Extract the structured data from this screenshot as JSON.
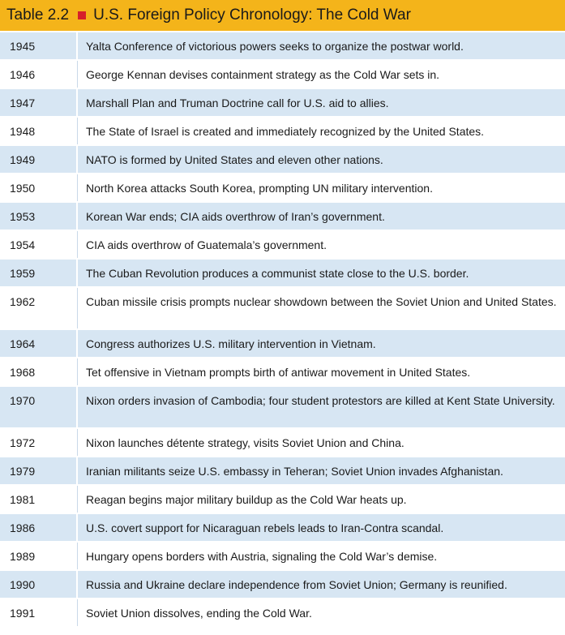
{
  "title": {
    "label": "Table 2.2",
    "text": "U.S. Foreign Policy Chronology: The Cold War"
  },
  "colors": {
    "title_bg": "#f4b41a",
    "marker": "#d6202a",
    "row_shade": "#d7e6f3"
  },
  "rows": [
    {
      "year": "1945",
      "event": "Yalta Conference of victorious powers seeks to organize the postwar world."
    },
    {
      "year": "1946",
      "event": "George Kennan devises containment strategy as the Cold War sets in."
    },
    {
      "year": "1947",
      "event": "Marshall Plan and Truman Doctrine call for U.S. aid to allies."
    },
    {
      "year": "1948",
      "event": "The State of Israel is created and immediately recognized by the United States."
    },
    {
      "year": "1949",
      "event": "NATO is formed by United States and eleven other nations."
    },
    {
      "year": "1950",
      "event": "North Korea attacks South Korea, prompting UN military intervention."
    },
    {
      "year": "1953",
      "event": "Korean War ends; CIA aids overthrow of Iran’s government."
    },
    {
      "year": "1954",
      "event": "CIA aids overthrow of Guatemala’s government."
    },
    {
      "year": "1959",
      "event": "The Cuban Revolution produces a communist state close to the U.S. border."
    },
    {
      "year": "1962",
      "event": "Cuban missile crisis prompts nuclear showdown between the Soviet Union and United States."
    },
    {
      "year": "1964",
      "event": "Congress authorizes U.S. military intervention in Vietnam."
    },
    {
      "year": "1968",
      "event": "Tet offensive in Vietnam prompts birth of antiwar movement in United States."
    },
    {
      "year": "1970",
      "event": "Nixon orders invasion of Cambodia; four student protestors are killed at Kent State University."
    },
    {
      "year": "1972",
      "event": "Nixon launches détente strategy, visits Soviet Union and China."
    },
    {
      "year": "1979",
      "event": "Iranian militants seize U.S. embassy in Teheran; Soviet Union invades Afghanistan."
    },
    {
      "year": "1981",
      "event": "Reagan begins major military buildup as the Cold War heats up."
    },
    {
      "year": "1986",
      "event": "U.S. covert support for Nicaraguan rebels leads to Iran-Contra scandal."
    },
    {
      "year": "1989",
      "event": "Hungary opens borders with Austria, signaling the Cold War’s demise."
    },
    {
      "year": "1990",
      "event": "Russia and Ukraine declare independence from Soviet Union; Germany is reunified."
    },
    {
      "year": "1991",
      "event": "Soviet Union dissolves, ending the Cold War."
    }
  ]
}
